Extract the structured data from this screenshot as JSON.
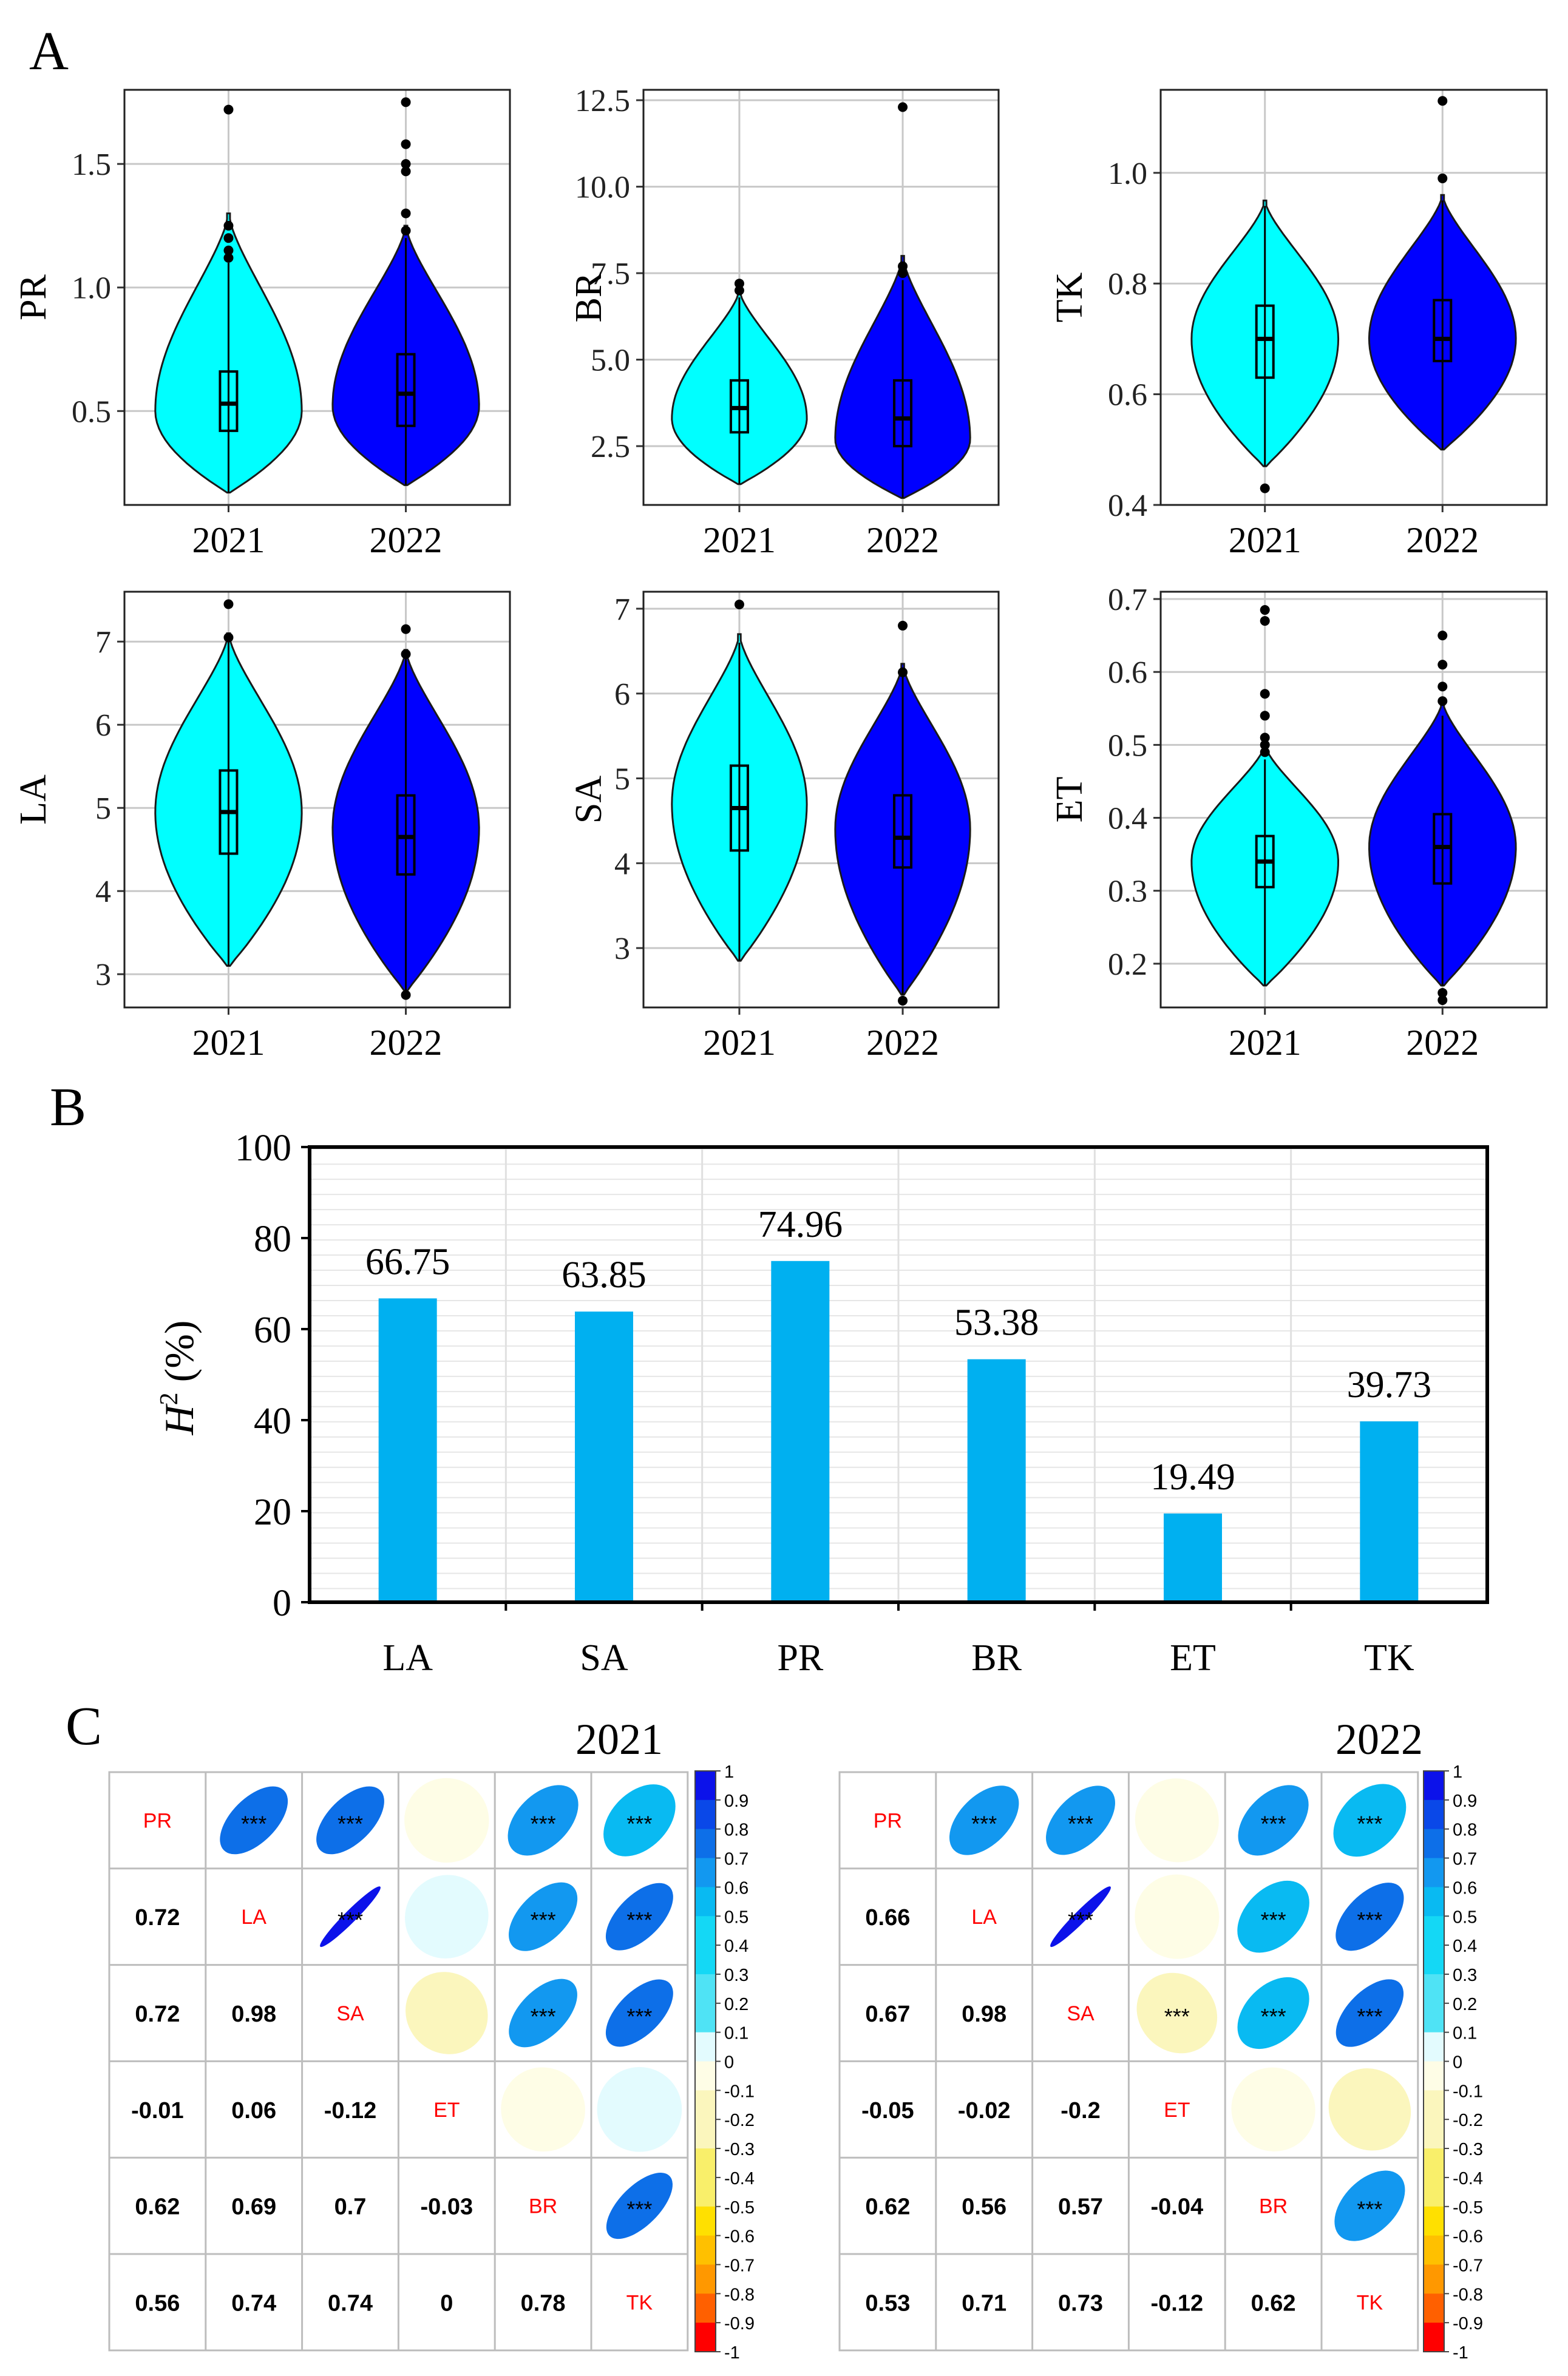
{
  "panel_labels": {
    "a": "A",
    "b": "B",
    "c": "C"
  },
  "colors": {
    "y2021": "#00ffff",
    "y2022": "#0000ff",
    "bar": "#00b0f0",
    "label_red": "#ff0000"
  },
  "chart_data": [
    {
      "type": "violin",
      "panel": "A",
      "categories": [
        "2021",
        "2022"
      ],
      "ylabel": "PR",
      "ylim": [
        0.12,
        1.8
      ],
      "yticks": [
        0.5,
        1.0,
        1.5
      ],
      "ytick_labels": [
        "0.5",
        "1.0",
        "1.5"
      ],
      "series": [
        {
          "name": "2021",
          "min": 0.17,
          "q1": 0.42,
          "median": 0.53,
          "q3": 0.66,
          "max": 1.1,
          "outliers": [
            1.12,
            1.15,
            1.2,
            1.25,
            1.72
          ],
          "violin_max": 1.3,
          "mode": 0.5
        },
        {
          "name": "2022",
          "min": 0.2,
          "q1": 0.44,
          "median": 0.57,
          "q3": 0.73,
          "max": 1.2,
          "outliers": [
            1.23,
            1.3,
            1.47,
            1.5,
            1.58,
            1.75
          ],
          "violin_max": 1.25,
          "mode": 0.52
        }
      ]
    },
    {
      "type": "violin",
      "panel": "A",
      "categories": [
        "2021",
        "2022"
      ],
      "ylabel": "BR",
      "ylim": [
        0.8,
        12.8
      ],
      "yticks": [
        2.5,
        5.0,
        7.5,
        10.0,
        12.5
      ],
      "ytick_labels": [
        "2.5",
        "5.0",
        "7.5",
        "10.0",
        "12.5"
      ],
      "series": [
        {
          "name": "2021",
          "min": 1.4,
          "q1": 2.9,
          "median": 3.6,
          "q3": 4.4,
          "max": 6.8,
          "outliers": [
            7.0,
            7.2
          ],
          "violin_max": 7.0,
          "mode": 3.3
        },
        {
          "name": "2022",
          "min": 1.0,
          "q1": 2.5,
          "median": 3.3,
          "q3": 4.4,
          "max": 7.3,
          "outliers": [
            7.5,
            7.7,
            12.3
          ],
          "violin_max": 8.0,
          "mode": 2.7
        }
      ]
    },
    {
      "type": "violin",
      "panel": "A",
      "categories": [
        "2021",
        "2022"
      ],
      "ylabel": "TK",
      "ylim": [
        0.4,
        1.15
      ],
      "yticks": [
        0.4,
        0.6,
        0.8,
        1.0
      ],
      "ytick_labels": [
        "0.4",
        "0.6",
        "0.8",
        "1.0"
      ],
      "series": [
        {
          "name": "2021",
          "min": 0.47,
          "q1": 0.63,
          "median": 0.7,
          "q3": 0.76,
          "max": 0.94,
          "outliers": [
            0.43
          ],
          "violin_max": 0.95,
          "mode": 0.7
        },
        {
          "name": "2022",
          "min": 0.5,
          "q1": 0.66,
          "median": 0.7,
          "q3": 0.77,
          "max": 0.95,
          "outliers": [
            0.99,
            1.13
          ],
          "violin_max": 0.96,
          "mode": 0.7
        }
      ]
    },
    {
      "type": "violin",
      "panel": "A",
      "categories": [
        "2021",
        "2022"
      ],
      "ylabel": "LA",
      "ylim": [
        2.6,
        7.6
      ],
      "yticks": [
        3,
        4,
        5,
        6,
        7
      ],
      "ytick_labels": [
        "3",
        "4",
        "5",
        "6",
        "7"
      ],
      "series": [
        {
          "name": "2021",
          "min": 3.1,
          "q1": 4.45,
          "median": 4.95,
          "q3": 5.45,
          "max": 7.0,
          "outliers": [
            7.05,
            7.45
          ],
          "violin_max": 7.1,
          "mode": 4.95
        },
        {
          "name": "2022",
          "min": 2.8,
          "q1": 4.2,
          "median": 4.65,
          "q3": 5.15,
          "max": 6.8,
          "outliers": [
            2.75,
            6.85,
            7.15
          ],
          "violin_max": 6.9,
          "mode": 4.75
        }
      ]
    },
    {
      "type": "violin",
      "panel": "A",
      "categories": [
        "2021",
        "2022"
      ],
      "ylabel": "SA",
      "ylim": [
        2.3,
        7.2
      ],
      "yticks": [
        3,
        4,
        5,
        6,
        7
      ],
      "ytick_labels": [
        "3",
        "4",
        "5",
        "6",
        "7"
      ],
      "series": [
        {
          "name": "2021",
          "min": 2.85,
          "q1": 4.15,
          "median": 4.65,
          "q3": 5.15,
          "max": 6.6,
          "outliers": [
            7.05
          ],
          "violin_max": 6.7,
          "mode": 4.7
        },
        {
          "name": "2022",
          "min": 2.45,
          "q1": 3.95,
          "median": 4.3,
          "q3": 4.8,
          "max": 6.2,
          "outliers": [
            2.38,
            6.25,
            6.8
          ],
          "violin_max": 6.35,
          "mode": 4.4
        }
      ]
    },
    {
      "type": "violin",
      "panel": "A",
      "categories": [
        "2021",
        "2022"
      ],
      "ylabel": "ET",
      "ylim": [
        0.14,
        0.71
      ],
      "yticks": [
        0.2,
        0.3,
        0.4,
        0.5,
        0.6,
        0.7
      ],
      "ytick_labels": [
        "0.2",
        "0.3",
        "0.4",
        "0.5",
        "0.6",
        "0.7"
      ],
      "series": [
        {
          "name": "2021",
          "min": 0.17,
          "q1": 0.305,
          "median": 0.34,
          "q3": 0.375,
          "max": 0.48,
          "outliers": [
            0.49,
            0.5,
            0.51,
            0.54,
            0.57,
            0.67,
            0.685
          ],
          "violin_max": 0.5,
          "mode": 0.34
        },
        {
          "name": "2022",
          "min": 0.17,
          "q1": 0.31,
          "median": 0.36,
          "q3": 0.405,
          "max": 0.54,
          "outliers": [
            0.15,
            0.16,
            0.56,
            0.58,
            0.61,
            0.65
          ],
          "violin_max": 0.56,
          "mode": 0.36
        }
      ]
    },
    {
      "type": "bar",
      "panel": "B",
      "categories": [
        "LA",
        "SA",
        "PR",
        "BR",
        "ET",
        "TK"
      ],
      "values": [
        66.75,
        63.85,
        74.96,
        53.38,
        19.49,
        39.73
      ],
      "value_labels": [
        "66.75",
        "63.85",
        "74.96",
        "53.38",
        "19.49",
        "39.73"
      ],
      "ylabel_main": "H",
      "ylabel_sup": "2",
      "ylabel_rest": " (%)",
      "ylim": [
        0,
        100
      ],
      "yticks": [
        0,
        20,
        40,
        60,
        80,
        100
      ],
      "ytick_labels": [
        "0",
        "20",
        "40",
        "60",
        "80",
        "100"
      ]
    },
    {
      "type": "heatmap",
      "panel": "C",
      "title": "2021",
      "variables": [
        "PR",
        "LA",
        "SA",
        "ET",
        "BR",
        "TK"
      ],
      "matrix": [
        [
          1,
          0.72,
          0.72,
          -0.01,
          0.62,
          0.56
        ],
        [
          0.72,
          1,
          0.98,
          0.06,
          0.69,
          0.74
        ],
        [
          0.72,
          0.98,
          1,
          -0.12,
          0.7,
          0.74
        ],
        [
          -0.01,
          0.06,
          -0.12,
          1,
          -0.03,
          0
        ],
        [
          0.62,
          0.69,
          0.7,
          -0.03,
          1,
          0.78
        ],
        [
          0.56,
          0.74,
          0.74,
          0,
          0.78,
          1
        ]
      ],
      "lower_labels": [
        [
          "",
          "",
          "",
          "",
          "",
          ""
        ],
        [
          "0.72",
          "",
          "",
          "",
          "",
          ""
        ],
        [
          "0.72",
          "0.98",
          "",
          "",
          "",
          ""
        ],
        [
          "-0.01",
          "0.06",
          "-0.12",
          "",
          "",
          ""
        ],
        [
          "0.62",
          "0.69",
          "0.7",
          "-0.03",
          "",
          ""
        ],
        [
          "0.56",
          "0.74",
          "0.74",
          "0",
          "0.78",
          ""
        ]
      ],
      "upper_stars": [
        [
          "",
          "***",
          "***",
          "",
          "***",
          "***"
        ],
        [
          "",
          "",
          "***",
          "",
          "***",
          "***"
        ],
        [
          "",
          "",
          "",
          "",
          "***",
          "***"
        ],
        [
          "",
          "",
          "",
          "",
          "",
          ""
        ],
        [
          "",
          "",
          "",
          "",
          "",
          "***"
        ],
        [
          "",
          "",
          "",
          "",
          "",
          ""
        ]
      ],
      "colorbar_ticks": [
        1,
        0.9,
        0.8,
        0.7,
        0.6,
        0.5,
        0.4,
        0.3,
        0.2,
        0.1,
        0,
        -0.1,
        -0.2,
        -0.3,
        -0.4,
        -0.5,
        -0.6,
        -0.7,
        -0.8,
        -0.9,
        -1
      ],
      "colorbar_labels": [
        "1",
        "0.9",
        "0.8",
        "0.7",
        "0.6",
        "0.5",
        "0.4",
        "0.3",
        "0.2",
        "0.1",
        "0",
        "-0.1",
        "-0.2",
        "-0.3",
        "-0.4",
        "-0.5",
        "-0.6",
        "-0.7",
        "-0.8",
        "-0.9",
        "-1"
      ]
    },
    {
      "type": "heatmap",
      "panel": "C",
      "title": "2022",
      "variables": [
        "PR",
        "LA",
        "SA",
        "ET",
        "BR",
        "TK"
      ],
      "matrix": [
        [
          1,
          0.66,
          0.67,
          -0.05,
          0.62,
          0.53
        ],
        [
          0.66,
          1,
          0.98,
          -0.02,
          0.56,
          0.71
        ],
        [
          0.67,
          0.98,
          1,
          -0.2,
          0.57,
          0.73
        ],
        [
          -0.05,
          -0.02,
          -0.2,
          1,
          -0.04,
          -0.12
        ],
        [
          0.62,
          0.56,
          0.57,
          -0.04,
          1,
          0.62
        ],
        [
          0.53,
          0.71,
          0.73,
          -0.12,
          0.62,
          1
        ]
      ],
      "lower_labels": [
        [
          "",
          "",
          "",
          "",
          "",
          ""
        ],
        [
          "0.66",
          "",
          "",
          "",
          "",
          ""
        ],
        [
          "0.67",
          "0.98",
          "",
          "",
          "",
          ""
        ],
        [
          "-0.05",
          "-0.02",
          "-0.2",
          "",
          "",
          ""
        ],
        [
          "0.62",
          "0.56",
          "0.57",
          "-0.04",
          "",
          ""
        ],
        [
          "0.53",
          "0.71",
          "0.73",
          "-0.12",
          "0.62",
          ""
        ]
      ],
      "upper_stars": [
        [
          "",
          "***",
          "***",
          "",
          "***",
          "***"
        ],
        [
          "",
          "",
          "***",
          "",
          "***",
          "***"
        ],
        [
          "",
          "",
          "",
          "***",
          "***",
          "***"
        ],
        [
          "",
          "",
          "",
          "",
          "",
          ""
        ],
        [
          "",
          "",
          "",
          "",
          "",
          "***"
        ],
        [
          "",
          "",
          "",
          "",
          "",
          ""
        ]
      ],
      "colorbar_ticks": [
        1,
        0.9,
        0.8,
        0.7,
        0.6,
        0.5,
        0.4,
        0.3,
        0.2,
        0.1,
        0,
        -0.1,
        -0.2,
        -0.3,
        -0.4,
        -0.5,
        -0.6,
        -0.7,
        -0.8,
        -0.9,
        -1
      ],
      "colorbar_labels": [
        "1",
        "0.9",
        "0.8",
        "0.7",
        "0.6",
        "0.5",
        "0.4",
        "0.3",
        "0.2",
        "0.1",
        "0",
        "-0.1",
        "-0.2",
        "-0.3",
        "-0.4",
        "-0.5",
        "-0.6",
        "-0.7",
        "-0.8",
        "-0.9",
        "-1"
      ]
    }
  ]
}
